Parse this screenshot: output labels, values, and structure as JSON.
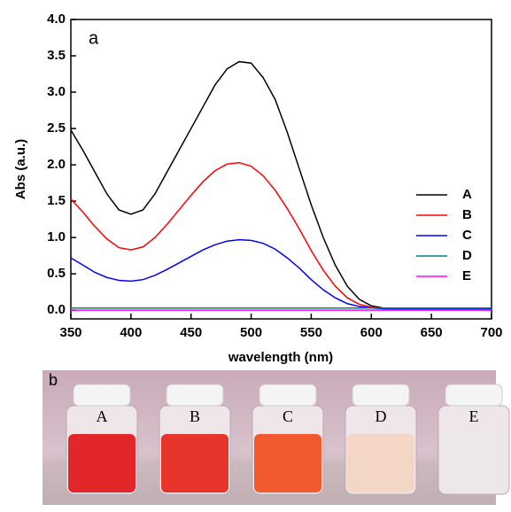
{
  "chart_data": {
    "type": "line",
    "annotation": "a",
    "x_label": "wavelength (nm)",
    "y_label": "Abs (a.u.)",
    "x": [
      350,
      360,
      370,
      380,
      390,
      400,
      410,
      420,
      430,
      440,
      450,
      460,
      470,
      480,
      490,
      500,
      510,
      520,
      530,
      540,
      550,
      560,
      570,
      580,
      590,
      600,
      610,
      620,
      630,
      640,
      650,
      660,
      670,
      680,
      690,
      700
    ],
    "series": [
      {
        "name": "A",
        "color": "#000000",
        "values": [
          2.48,
          2.2,
          1.9,
          1.6,
          1.38,
          1.32,
          1.38,
          1.6,
          1.9,
          2.2,
          2.5,
          2.8,
          3.1,
          3.32,
          3.42,
          3.4,
          3.2,
          2.9,
          2.45,
          1.95,
          1.45,
          1.0,
          0.62,
          0.33,
          0.15,
          0.06,
          0.03,
          0.02,
          0.02,
          0.02,
          0.02,
          0.02,
          0.02,
          0.02,
          0.02,
          0.02
        ]
      },
      {
        "name": "B",
        "color": "#ff0000",
        "values": [
          1.53,
          1.35,
          1.15,
          0.98,
          0.86,
          0.83,
          0.87,
          1.0,
          1.18,
          1.38,
          1.58,
          1.77,
          1.92,
          2.01,
          2.03,
          1.98,
          1.85,
          1.65,
          1.4,
          1.12,
          0.82,
          0.55,
          0.33,
          0.17,
          0.08,
          0.04,
          0.02,
          0.02,
          0.02,
          0.02,
          0.02,
          0.02,
          0.02,
          0.02,
          0.02,
          0.02
        ]
      },
      {
        "name": "C",
        "color": "#0000ff",
        "values": [
          0.72,
          0.62,
          0.52,
          0.45,
          0.41,
          0.4,
          0.42,
          0.48,
          0.56,
          0.65,
          0.74,
          0.83,
          0.9,
          0.95,
          0.97,
          0.96,
          0.92,
          0.84,
          0.72,
          0.58,
          0.42,
          0.28,
          0.17,
          0.09,
          0.05,
          0.03,
          0.02,
          0.02,
          0.02,
          0.02,
          0.02,
          0.02,
          0.02,
          0.02,
          0.02,
          0.02
        ]
      },
      {
        "name": "D",
        "color": "#008080",
        "values": [
          0.03,
          0.03,
          0.03,
          0.03,
          0.03,
          0.03,
          0.03,
          0.03,
          0.03,
          0.03,
          0.03,
          0.03,
          0.03,
          0.03,
          0.03,
          0.03,
          0.03,
          0.03,
          0.03,
          0.03,
          0.03,
          0.03,
          0.03,
          0.03,
          0.03,
          0.03,
          0.03,
          0.03,
          0.03,
          0.03,
          0.03,
          0.03,
          0.03,
          0.03,
          0.03,
          0.03
        ]
      },
      {
        "name": "E",
        "color": "#ff00ff",
        "values": [
          0.0,
          0.0,
          0.0,
          0.0,
          0.0,
          0.0,
          0.0,
          0.0,
          0.0,
          0.0,
          0.0,
          0.0,
          0.0,
          0.0,
          0.0,
          0.0,
          0.0,
          0.0,
          0.0,
          0.0,
          0.0,
          0.0,
          0.0,
          0.0,
          0.0,
          0.0,
          0.0,
          0.0,
          0.0,
          0.0,
          0.0,
          0.0,
          0.0,
          0.0,
          0.0,
          0.0
        ]
      }
    ],
    "xlim": [
      350,
      700
    ],
    "xticks": [
      350,
      400,
      450,
      500,
      550,
      600,
      650,
      700
    ],
    "ylim": [
      -0.12,
      4.0
    ],
    "yticks": [
      {
        "value": 0,
        "label": "0.0"
      },
      0.5,
      {
        "value": 1,
        "label": "1.0"
      },
      1.5,
      {
        "value": 2,
        "label": "2.0"
      },
      2.5,
      {
        "value": 3,
        "label": "3.0"
      },
      3.5,
      {
        "value": 4,
        "label": "4.0"
      }
    ],
    "legend": "right"
  },
  "photo": {
    "panel_label": "b",
    "vials": [
      "A",
      "B",
      "C",
      "D",
      "E"
    ]
  }
}
